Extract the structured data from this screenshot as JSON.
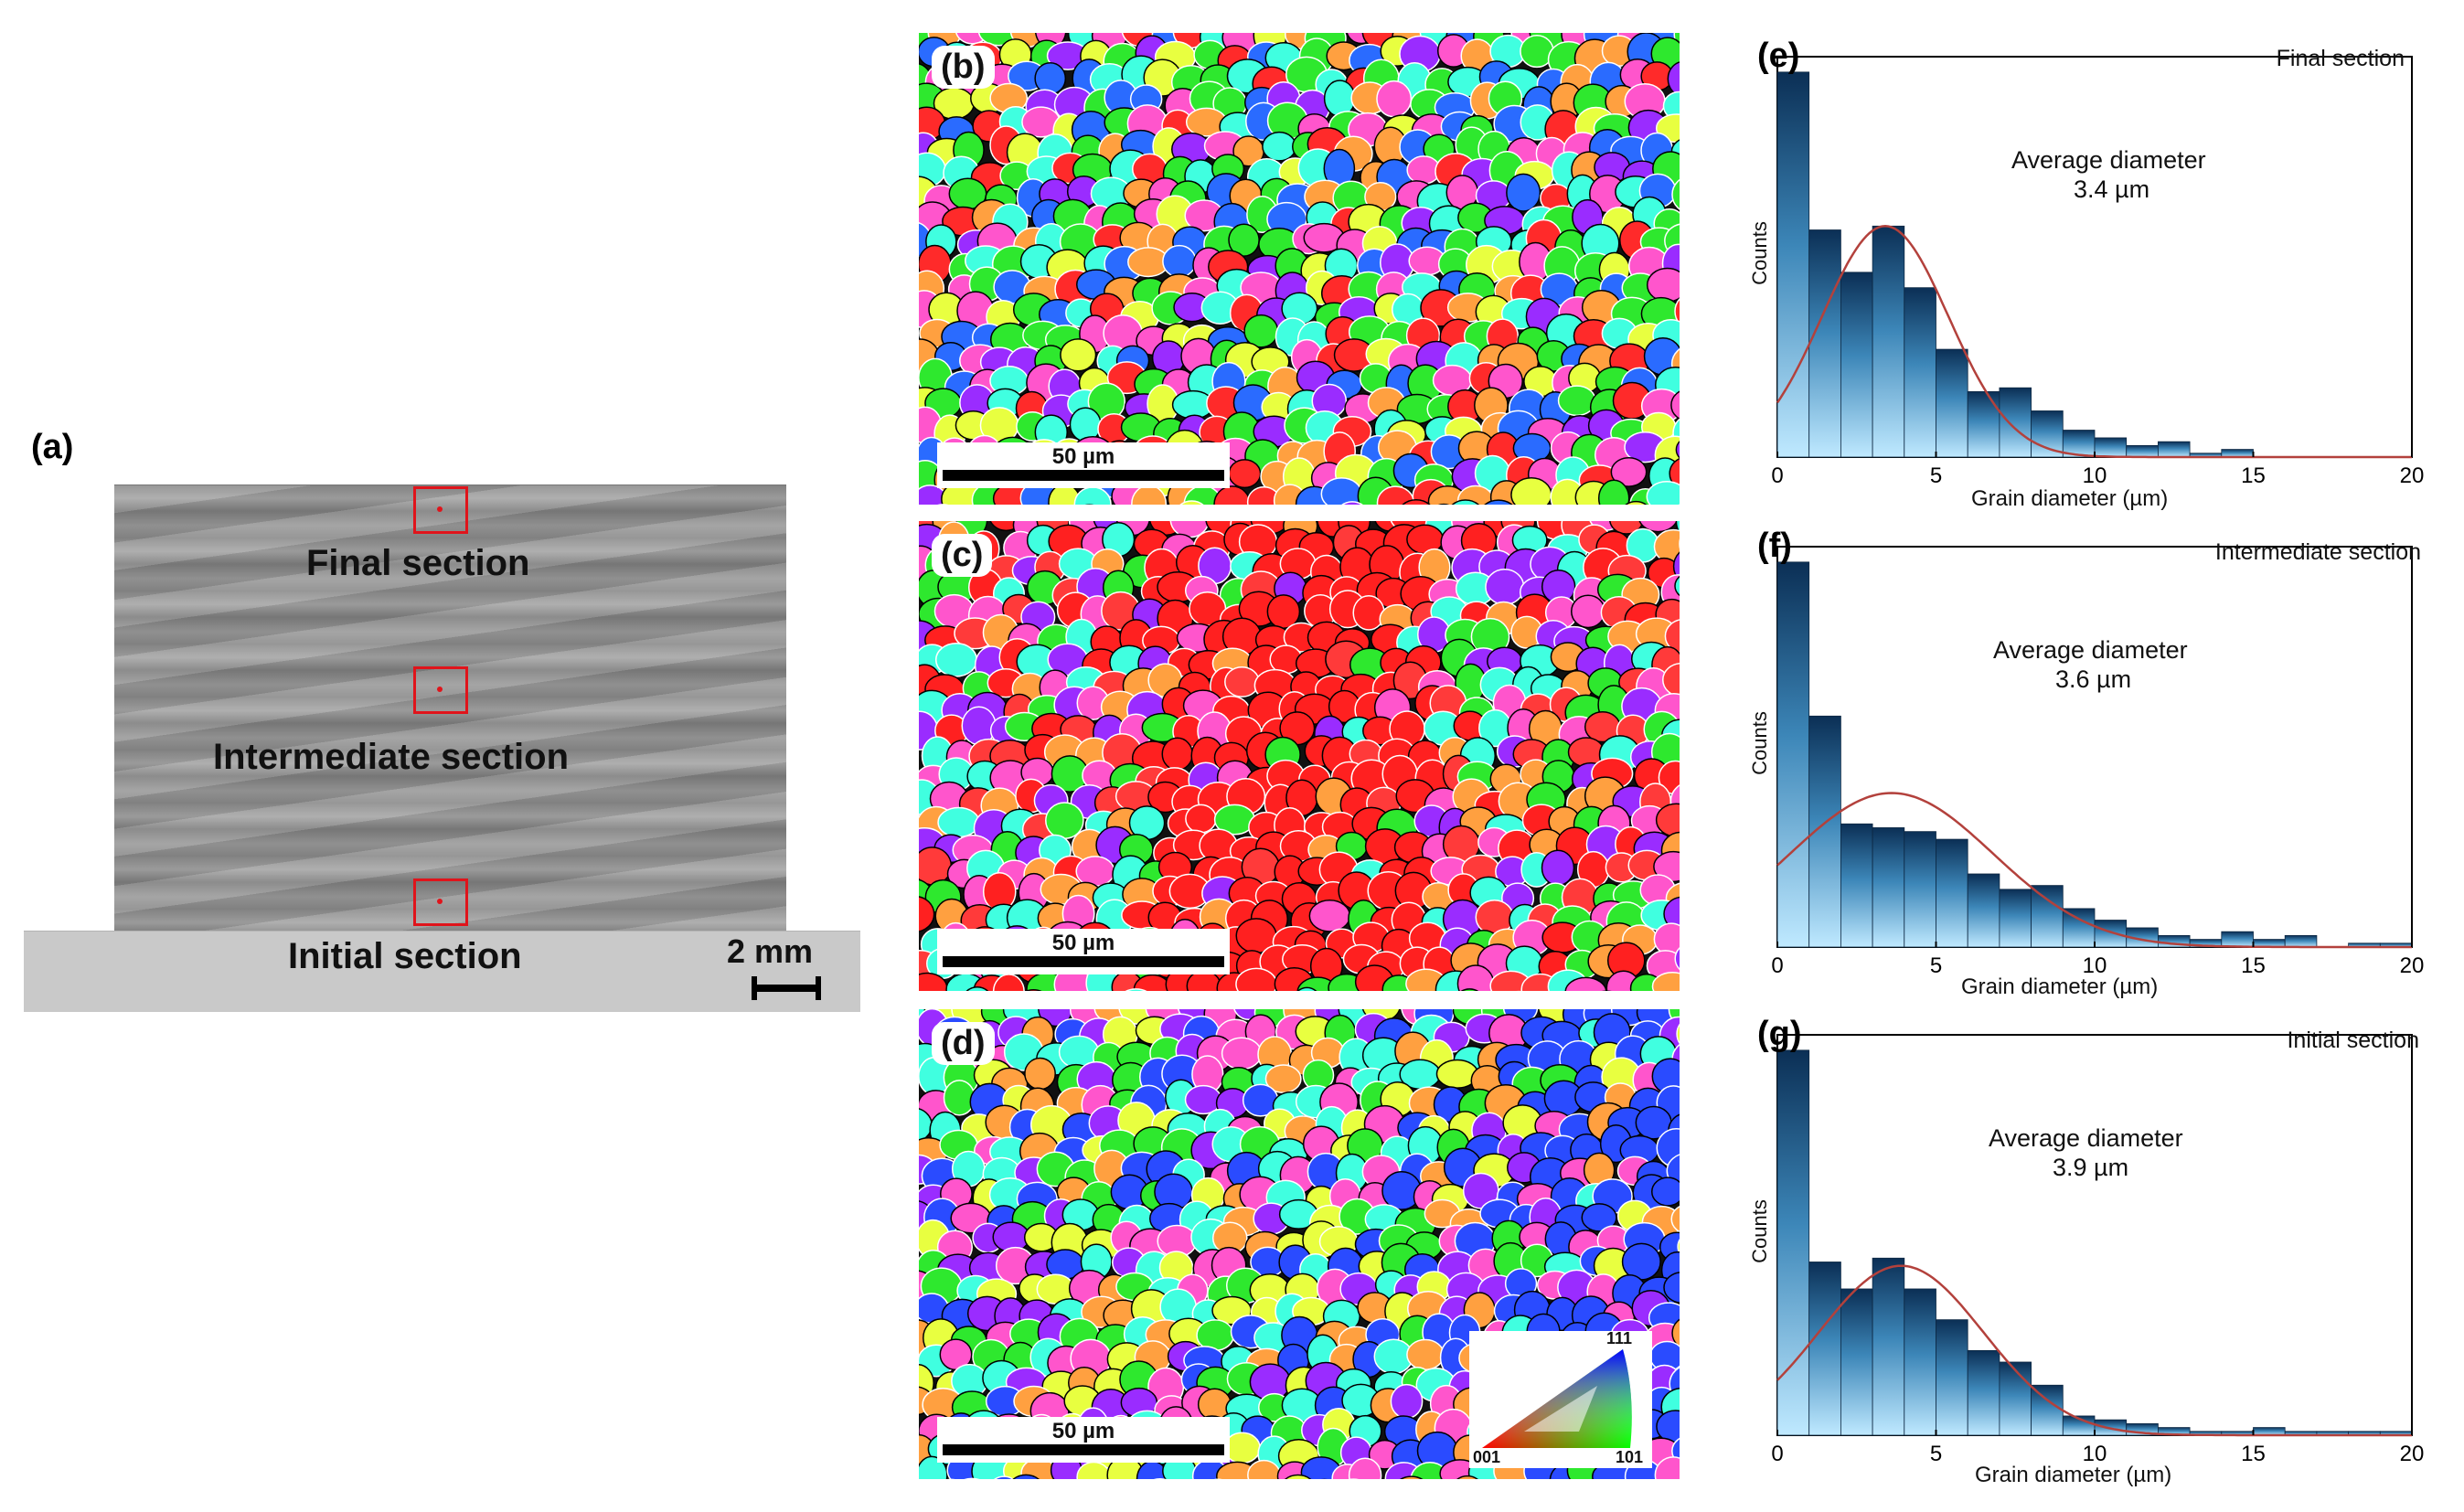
{
  "panel_a": {
    "letter": "(a)",
    "labels": {
      "final": "Final section",
      "intermediate": "Intermediate section",
      "initial": "Initial section"
    },
    "scale_label": "2 mm"
  },
  "ebsd_maps": [
    {
      "letter": "(b)",
      "scale_label": "50 µm",
      "dominant_colors": [
        "#2ee82e",
        "#ff2a2a",
        "#9a2cff",
        "#ff55cc",
        "#ffa040",
        "#2a6bff",
        "#e8ff40",
        "#40ffe0"
      ]
    },
    {
      "letter": "(c)",
      "scale_label": "50 µm",
      "dominant_colors": [
        "#ff2020",
        "#2ee82e",
        "#ff3a3a",
        "#9a2cff",
        "#ff55cc",
        "#ffa040",
        "#40ffe0"
      ]
    },
    {
      "letter": "(d)",
      "scale_label": "50 µm",
      "dominant_colors": [
        "#2ee82e",
        "#2a4bff",
        "#ff55cc",
        "#9a2cff",
        "#ffa040",
        "#40ffe0",
        "#e8ff40"
      ]
    }
  ],
  "ipf_legend": {
    "top": "111",
    "left": "001",
    "right": "101"
  },
  "chart_data": [
    {
      "type": "bar",
      "letter": "(e)",
      "title": "Final section",
      "annotation": "Average  diameter",
      "annotation_value": "3.4 µm",
      "xlabel": "Grain diameter (µm)",
      "ylabel": "Counts",
      "xlim": [
        0,
        20
      ],
      "xticks": [
        "0",
        "5",
        "10",
        "15",
        "20"
      ],
      "bin_width": 1,
      "values": [
        1.0,
        0.59,
        0.48,
        0.6,
        0.44,
        0.28,
        0.17,
        0.18,
        0.12,
        0.07,
        0.05,
        0.03,
        0.04,
        0.01,
        0.02,
        0,
        0,
        0,
        0,
        0
      ],
      "fit_mean": 3.4,
      "fit_sd": 2.0,
      "fit_peak": 0.6
    },
    {
      "type": "bar",
      "letter": "(f)",
      "title": "Intermediate section",
      "annotation": "Average  diameter",
      "annotation_value": "3.6 µm",
      "xlabel": "Grain diameter (µm)",
      "ylabel": "Counts",
      "xlim": [
        0,
        20
      ],
      "xticks": [
        "0",
        "5",
        "10",
        "15",
        "20"
      ],
      "bin_width": 1,
      "values": [
        1.0,
        0.6,
        0.32,
        0.31,
        0.3,
        0.28,
        0.19,
        0.15,
        0.16,
        0.1,
        0.07,
        0.05,
        0.03,
        0.02,
        0.04,
        0.02,
        0.03,
        0,
        0.01,
        0.01
      ],
      "fit_mean": 3.6,
      "fit_sd": 3.2,
      "fit_peak": 0.4
    },
    {
      "type": "bar",
      "letter": "(g)",
      "title": "Initial section",
      "annotation": "Average  diameter",
      "annotation_value": "3.9 µm",
      "xlabel": "Grain diameter (µm)",
      "ylabel": "Counts",
      "xlim": [
        0,
        20
      ],
      "xticks": [
        "0",
        "5",
        "10",
        "15",
        "20"
      ],
      "bin_width": 1,
      "values": [
        1.0,
        0.45,
        0.38,
        0.46,
        0.38,
        0.3,
        0.22,
        0.19,
        0.13,
        0.05,
        0.04,
        0.03,
        0.02,
        0.01,
        0.01,
        0.02,
        0.01,
        0.01,
        0.01,
        0.01
      ],
      "fit_mean": 3.9,
      "fit_sd": 2.6,
      "fit_peak": 0.44
    }
  ]
}
